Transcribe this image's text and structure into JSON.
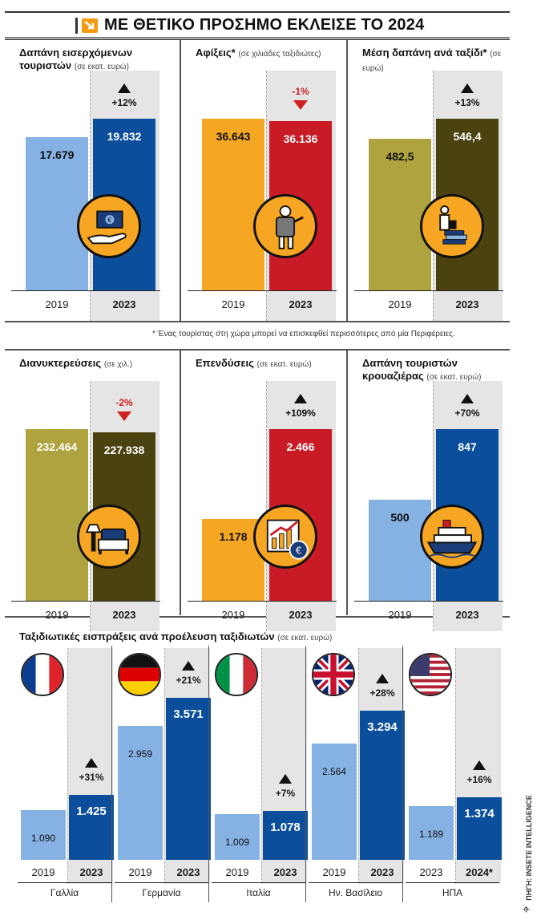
{
  "title": "ΜΕ ΘΕΤΙΚΟ ΠΡΟΣΗΜΟ ΕΚΛΕΙΣΕ ΤΟ 2024",
  "note": "* Ένας τουρίστας στη χώρα μπορεί να επισκεφθεί περισσότερες από μία Περιφέρειες.",
  "credit": "ΠΗΓΗ: INSETE INTELLIGENCE",
  "colors": {
    "light_blue": "#86b1e3",
    "dark_blue": "#0b4f9c",
    "orange": "#f5a623",
    "red": "#c81b25",
    "olive": "#aea33e",
    "dark_olive": "#4a4310",
    "icon_orange": "#f6a623"
  },
  "chart_data": [
    {
      "type": "bar",
      "id": "spending",
      "title": "Δαπάνη εισερχόμενων τουριστών",
      "unit": "(σε εκατ. ευρώ)",
      "categories": [
        "2019",
        "2023"
      ],
      "values": [
        17679,
        19832
      ],
      "labels": [
        "17.679",
        "19.832"
      ],
      "change": "+12%",
      "direction": "up",
      "icon": "money-hand-icon"
    },
    {
      "type": "bar",
      "id": "arrivals",
      "title": "Αφίξεις*",
      "unit": "(σε χιλιάδες ταξιδιώτες)",
      "categories": [
        "2019",
        "2023"
      ],
      "values": [
        36643,
        36136
      ],
      "labels": [
        "36.643",
        "36.136"
      ],
      "change": "-1%",
      "direction": "down",
      "icon": "backpacker-icon"
    },
    {
      "type": "bar",
      "id": "avg_spend",
      "title": "Μέση δαπάνη ανά ταξίδι*",
      "unit": "(σε ευρώ)",
      "categories": [
        "2019",
        "2023"
      ],
      "values": [
        482.5,
        546.4
      ],
      "labels": [
        "482,5",
        "546,4"
      ],
      "change": "+13%",
      "direction": "up",
      "icon": "traveler-cash-icon"
    },
    {
      "type": "bar",
      "id": "overnights",
      "title": "Διανυκτερεύσεις",
      "unit": "(σε χιλ.)",
      "categories": [
        "2019",
        "2023"
      ],
      "values": [
        232464,
        227938
      ],
      "labels": [
        "232.464",
        "227.938"
      ],
      "change": "-2%",
      "direction": "down",
      "icon": "bed-icon"
    },
    {
      "type": "bar",
      "id": "investments",
      "title": "Επενδύσεις",
      "unit": "(σε εκατ. ευρώ)",
      "categories": [
        "2019",
        "2023"
      ],
      "values": [
        1178,
        2466
      ],
      "labels": [
        "1.178",
        "2.466"
      ],
      "change": "+109%",
      "direction": "up",
      "icon": "growth-chart-icon"
    },
    {
      "type": "bar",
      "id": "cruise",
      "title": "Δαπάνη τουριστών κρουαζιέρας",
      "unit": "(σε εκατ. ευρώ)",
      "categories": [
        "2019",
        "2023"
      ],
      "values": [
        500,
        847
      ],
      "labels": [
        "500",
        "847"
      ],
      "change": "+70%",
      "direction": "up",
      "icon": "cruise-ship-icon"
    },
    {
      "type": "bar",
      "id": "by_origin",
      "title": "Ταξιδιωτικές εισπράξεις ανά προέλευση ταξιδιωτών",
      "unit": "(σε εκατ. ευρώ)",
      "groups": [
        {
          "country": "Γαλλία",
          "flag": "france-flag-icon",
          "categories": [
            "2019",
            "2023"
          ],
          "values": [
            1090,
            1425
          ],
          "labels": [
            "1.090",
            "1.425"
          ],
          "change": "+31%"
        },
        {
          "country": "Γερμανία",
          "flag": "germany-flag-icon",
          "categories": [
            "2019",
            "2023"
          ],
          "values": [
            2959,
            3571
          ],
          "labels": [
            "2.959",
            "3.571"
          ],
          "change": "+21%"
        },
        {
          "country": "Ιταλία",
          "flag": "italy-flag-icon",
          "categories": [
            "2019",
            "2023"
          ],
          "values": [
            1009,
            1078
          ],
          "labels": [
            "1.009",
            "1.078"
          ],
          "change": "+7%"
        },
        {
          "country": "Ην. Βασίλειο",
          "flag": "uk-flag-icon",
          "categories": [
            "2019",
            "2023"
          ],
          "values": [
            2564,
            3294
          ],
          "labels": [
            "2.564",
            "3.294"
          ],
          "change": "+28%"
        },
        {
          "country": "ΗΠΑ",
          "flag": "usa-flag-icon",
          "categories": [
            "2023",
            "2024*"
          ],
          "values": [
            1189,
            1374
          ],
          "labels": [
            "1.189",
            "1.374"
          ],
          "change": "+16%"
        }
      ]
    }
  ]
}
